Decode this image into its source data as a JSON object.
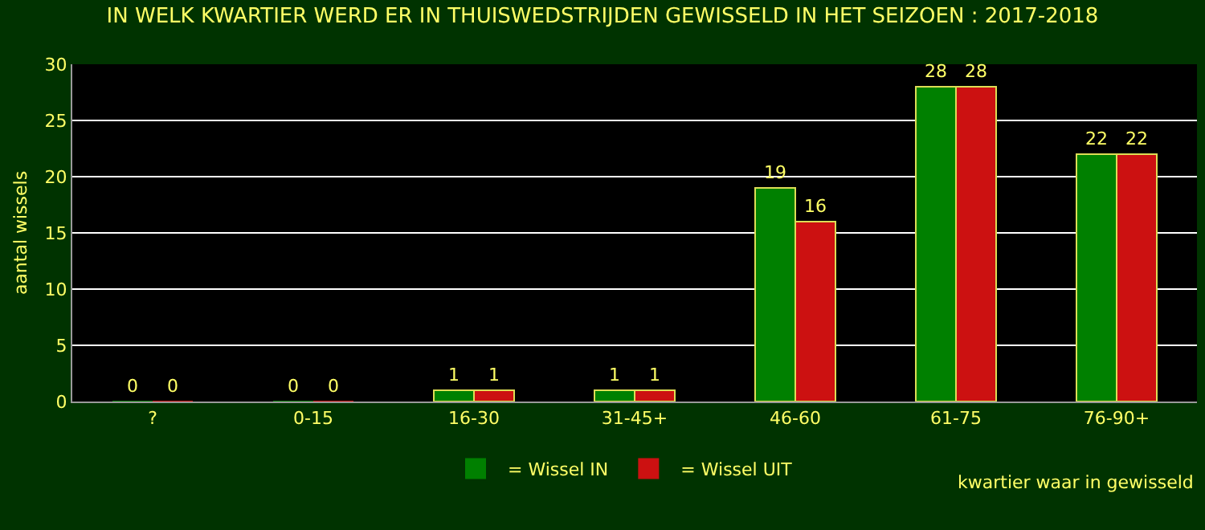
{
  "chart_data": {
    "type": "bar",
    "title": "IN WELK KWARTIER WERD ER IN THUISWEDSTRIJDEN GEWISSELD IN HET SEIZOEN : 2017-2018",
    "xlabel": "kwartier waar in gewisseld",
    "ylabel": "aantal wissels",
    "categories": [
      "?",
      "0-15",
      "16-30",
      "31-45+",
      "46-60",
      "61-75",
      "76-90+"
    ],
    "series": [
      {
        "name": "= Wissel IN",
        "color": "#008000",
        "values": [
          0,
          0,
          1,
          1,
          19,
          28,
          22
        ]
      },
      {
        "name": "= Wissel UIT",
        "color": "#cc1111",
        "values": [
          0,
          0,
          1,
          1,
          16,
          28,
          22
        ]
      }
    ],
    "ylim": [
      0,
      30
    ],
    "yticks": [
      0,
      5,
      10,
      15,
      20,
      25,
      30
    ],
    "grid": "y",
    "legend": "bottom",
    "data_labels": true
  }
}
